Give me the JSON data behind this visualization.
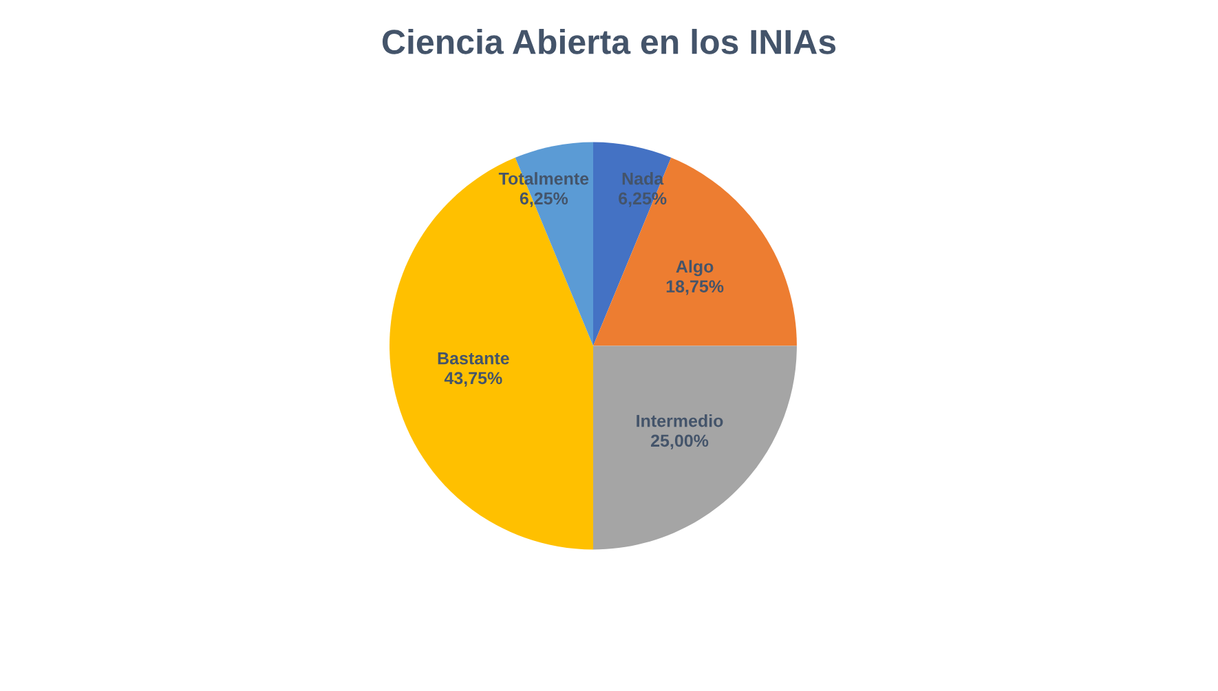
{
  "chart_data": {
    "type": "pie",
    "title": "Ciencia Abierta en los INIAs",
    "categories": [
      "Nada",
      "Algo",
      "Intermedio",
      "Bastante",
      "Totalmente"
    ],
    "values": [
      6.25,
      18.75,
      25,
      43.75,
      6.25
    ],
    "colors": [
      "#4472c4",
      "#ed7d31",
      "#a5a5a5",
      "#ffc000",
      "#5b9bd5"
    ],
    "value_labels": [
      "6,25%",
      "18,75%",
      "25,00%",
      "43,75%",
      "6,25%"
    ],
    "legend": false
  }
}
